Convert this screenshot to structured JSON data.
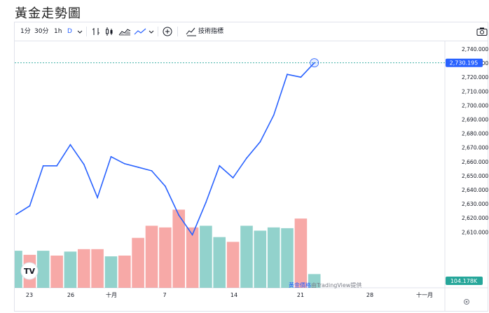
{
  "page": {
    "title": "黃金走勢圖"
  },
  "toolbar": {
    "intervals": [
      "1分",
      "30分",
      "1h",
      "D"
    ],
    "indicators_label": "技術指標"
  },
  "price_label": {
    "value": "2,730.195",
    "color": "#2962ff"
  },
  "volume_label": {
    "value": "104.178K",
    "color": "#26a69a"
  },
  "attribution": {
    "link_text": "黃金價格",
    "text": "由TradingView提供"
  },
  "watermark": "TV",
  "colors": {
    "line": "#2962ff",
    "vol_up": "#26a69a",
    "vol_down": "#ef5350",
    "crosshair": "#26a69a"
  },
  "chart_data": {
    "type": "line",
    "y_ticks": [
      "2,740.000",
      "2,730.000",
      "2,720.000",
      "2,710.000",
      "2,700.000",
      "2,690.000",
      "2,680.000",
      "2,670.000",
      "2,660.000",
      "2,650.000",
      "2,640.000",
      "2,630.000",
      "2,620.000",
      "2,610.000"
    ],
    "x_tick_labels": [
      "23",
      "26",
      "十月",
      "7",
      "14",
      "21",
      "28",
      "十一月"
    ],
    "ylim": [
      2604,
      2745
    ],
    "series": [
      {
        "values": [
          2622.5,
          2628.5,
          2657,
          2657,
          2672,
          2658,
          2634.5,
          2663.5,
          2658.5,
          2656,
          2653.5,
          2642.5,
          2622,
          2608,
          2631,
          2657,
          2648.5,
          2662.5,
          2674,
          2693,
          2722,
          2720,
          2730.2
        ]
      }
    ],
    "volume": {
      "values": [
        0.46,
        0.41,
        0.46,
        0.4,
        0.45,
        0.48,
        0.48,
        0.39,
        0.4,
        0.62,
        0.77,
        0.75,
        0.97,
        0.75,
        0.77,
        0.63,
        0.57,
        0.77,
        0.71,
        0.75,
        0.74,
        0.86,
        0.17
      ],
      "directions": [
        "up",
        "down",
        "up",
        "down",
        "up",
        "down",
        "down",
        "up",
        "down",
        "down",
        "down",
        "down",
        "down",
        "down",
        "up",
        "up",
        "down",
        "up",
        "up",
        "up",
        "up",
        "down",
        "up"
      ]
    }
  }
}
